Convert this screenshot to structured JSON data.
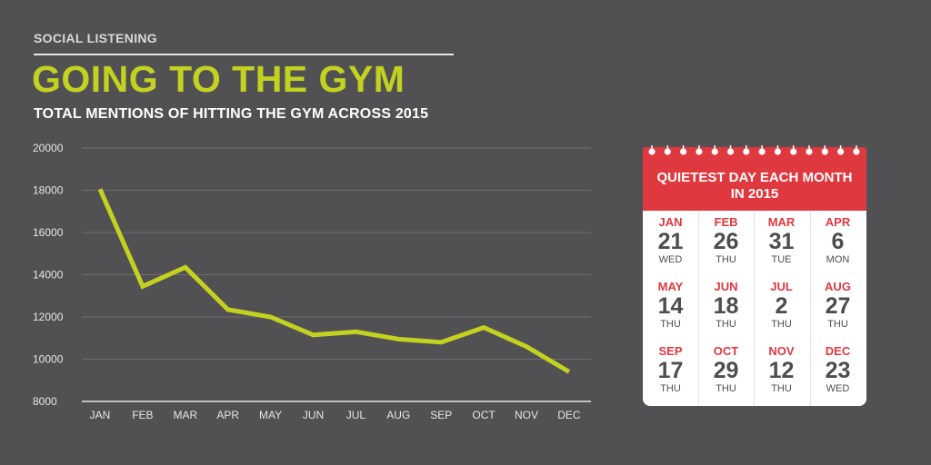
{
  "header": {
    "kicker": "SOCIAL LISTENING",
    "title": "GOING TO THE GYM",
    "subtitle": "TOTAL MENTIONS OF HITTING THE GYM ACROSS 2015"
  },
  "colors": {
    "background": "#515154",
    "accent": "#c3d21f",
    "calendar_red": "#e0383f"
  },
  "chart_data": {
    "type": "line",
    "title": "GOING TO THE GYM",
    "subtitle": "TOTAL MENTIONS OF HITTING THE GYM ACROSS 2015",
    "categories": [
      "JAN",
      "FEB",
      "MAR",
      "APR",
      "MAY",
      "JUN",
      "JUL",
      "AUG",
      "SEP",
      "OCT",
      "NOV",
      "DEC"
    ],
    "series": [
      {
        "values": [
          18050,
          13450,
          14350,
          12350,
          12000,
          11150,
          11300,
          10950,
          10800,
          11500,
          10600,
          9400
        ]
      }
    ],
    "yticks": [
      8000,
      10000,
      12000,
      14000,
      16000,
      18000,
      20000
    ],
    "ylim": [
      8000,
      20000
    ],
    "grid": true,
    "xlabel": "",
    "ylabel": ""
  },
  "calendar": {
    "title_line1": "QUIETEST DAY EACH MONTH",
    "title_line2": "IN 2015",
    "cells": [
      {
        "month": "JAN",
        "day": "21",
        "weekday": "WED"
      },
      {
        "month": "FEB",
        "day": "26",
        "weekday": "THU"
      },
      {
        "month": "MAR",
        "day": "31",
        "weekday": "TUE"
      },
      {
        "month": "APR",
        "day": "6",
        "weekday": "MON"
      },
      {
        "month": "MAY",
        "day": "14",
        "weekday": "THU"
      },
      {
        "month": "JUN",
        "day": "18",
        "weekday": "THU"
      },
      {
        "month": "JUL",
        "day": "2",
        "weekday": "THU"
      },
      {
        "month": "AUG",
        "day": "27",
        "weekday": "THU"
      },
      {
        "month": "SEP",
        "day": "17",
        "weekday": "THU"
      },
      {
        "month": "OCT",
        "day": "29",
        "weekday": "THU"
      },
      {
        "month": "NOV",
        "day": "12",
        "weekday": "THU"
      },
      {
        "month": "DEC",
        "day": "23",
        "weekday": "WED"
      }
    ]
  }
}
